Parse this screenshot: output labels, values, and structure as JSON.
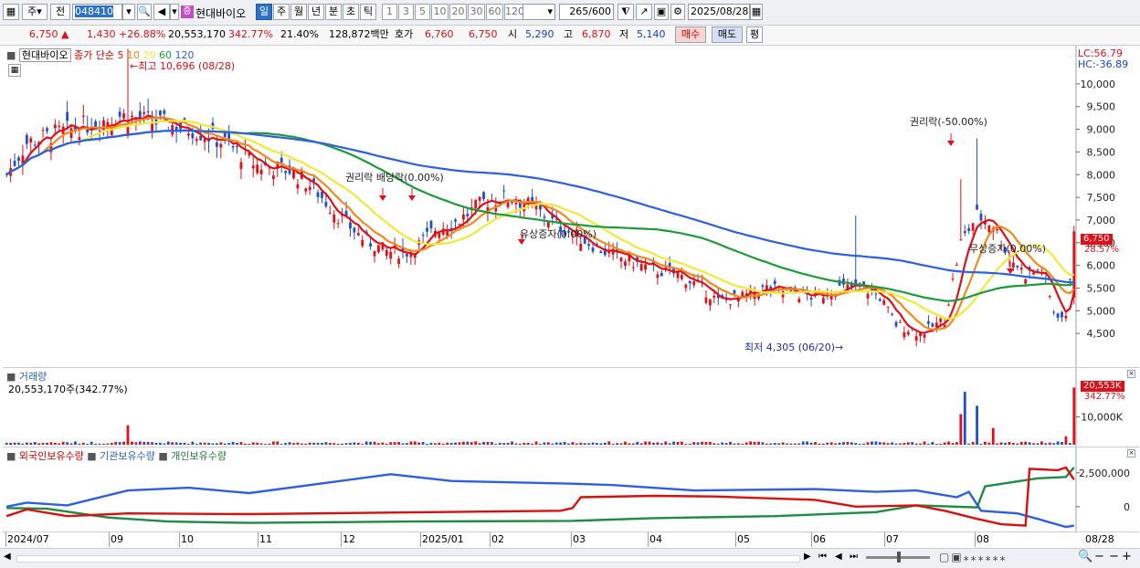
{
  "toolbar": {
    "market_btn": "주",
    "prev_btn": "전",
    "code": "048410",
    "stock_name": "현대바이오",
    "badge": "증",
    "periods": [
      "일",
      "주",
      "월",
      "년",
      "분",
      "초",
      "틱"
    ],
    "active_period": "일",
    "intervals": [
      "1",
      "3",
      "5",
      "10",
      "20",
      "30",
      "60",
      "120"
    ],
    "count": "265",
    "count_total": "/600",
    "date": "2025/08/28"
  },
  "quote": {
    "price": "6,750",
    "change": "1,430",
    "change_pct": "+26.88%",
    "volume": "20,553,170",
    "volume_ratio": "342.77%",
    "turnover": "21.40%",
    "amount": "128,872백만",
    "hoga_label": "호가",
    "ask": "6,760",
    "bid": "6,750",
    "open_label": "시",
    "open": "5,290",
    "high_label": "고",
    "high": "6,870",
    "low_label": "저",
    "low": "5,140",
    "buy_btn": "매수",
    "sell_btn": "매도",
    "eval_btn": "평"
  },
  "price_panel": {
    "legend_name": "현대바이오",
    "legend_series": "종가 단순",
    "ma_periods": [
      "5",
      "10",
      "20",
      "60",
      "120"
    ],
    "ma_colors": [
      "#e0101a",
      "#f08a1e",
      "#f0e83a",
      "#1f9a3a",
      "#2f5fe0"
    ],
    "lc": "LC:56.79",
    "hc": "HC:-36.89",
    "y_ticks": [
      "10,000",
      "9,500",
      "9,000",
      "8,500",
      "8,000",
      "7,500",
      "7,000",
      "6,500",
      "6,000",
      "5,500",
      "5,000",
      "4,500"
    ],
    "current_price_tag": "6,750",
    "current_pct_tag": "28.57%",
    "annotations": {
      "high": "최고 10,696 (08/28)",
      "low": "최저 4,305 (06/20)",
      "rights1": "권리락(-50.00%)",
      "rights2": "권리락",
      "rights3": "배당락(0.00%)",
      "paid": "유상증자(0.00%)",
      "bonus": "무상증자(0.00%)"
    }
  },
  "volume_panel": {
    "title": "거래량",
    "value": "20,553,170주(342.77%)",
    "tag_value": "20,553K",
    "tag_pct": "342.77%",
    "tick": "10,000K"
  },
  "holders_panel": {
    "foreign": "외국인보유수량",
    "institution": "기관보유수량",
    "individual": "개인보유수량",
    "ticks": [
      "2,500,000",
      "0"
    ]
  },
  "x_axis": {
    "labels": [
      "2024/07",
      "09",
      "10",
      "11",
      "12",
      "2025/01",
      "02",
      "03",
      "04",
      "05",
      "06",
      "07",
      "08",
      "08/28"
    ]
  },
  "chart_data": {
    "type": "candlestick",
    "title": "현대바이오",
    "period": "daily",
    "x_range": [
      "2024/07",
      "2025/08/28"
    ],
    "ylim": [
      4305,
      10696
    ],
    "markers": {
      "high": {
        "value": 10696,
        "date": "08/28"
      },
      "low": {
        "value": 4305,
        "date": "06/20"
      }
    },
    "moving_averages": [
      5,
      10,
      20,
      60,
      120
    ],
    "last": {
      "close": 6750,
      "open": 5290,
      "high": 6870,
      "low": 5140,
      "volume": 20553170
    }
  }
}
